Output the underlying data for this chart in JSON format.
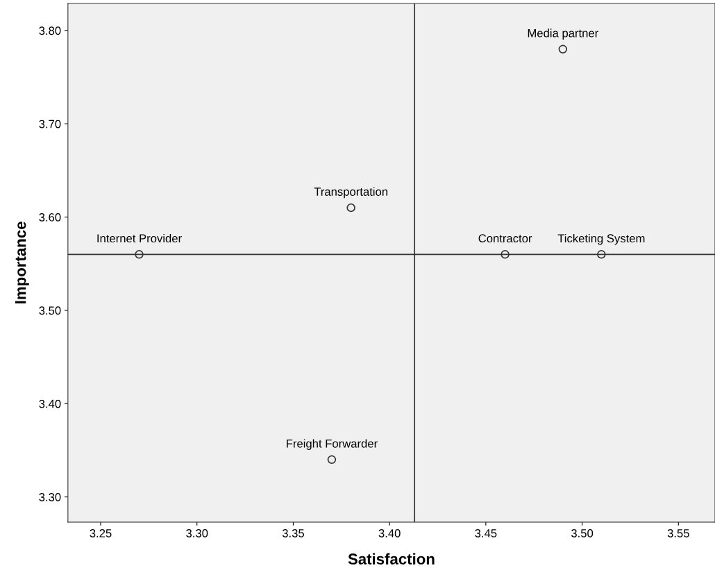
{
  "chart_data": {
    "type": "scatter",
    "xlabel": "Satisfaction",
    "ylabel": "Importance",
    "series": [
      {
        "color": "#333333",
        "x": [
          3.27,
          3.38,
          3.37,
          3.46,
          3.51,
          3.49
        ],
        "values": [
          3.56,
          3.61,
          3.34,
          3.56,
          3.56,
          3.78
        ]
      }
    ],
    "marker": "circle",
    "annotations": [
      {
        "text": "Internet Provider",
        "x": 3.27,
        "y": 3.56
      },
      {
        "text": "Transportation",
        "x": 3.38,
        "y": 3.61
      },
      {
        "text": "Freight Forwarder",
        "x": 3.37,
        "y": 3.34
      },
      {
        "text": "Contractor",
        "x": 3.46,
        "y": 3.56
      },
      {
        "text": "Ticketing System",
        "x": 3.51,
        "y": 3.56
      },
      {
        "text": "Media partner",
        "x": 3.49,
        "y": 3.78
      }
    ],
    "ref_lines": [
      {
        "axis": "x",
        "value": 3.413,
        "color": "#333333"
      },
      {
        "axis": "y",
        "value": 3.56,
        "color": "#333333"
      }
    ],
    "xlim": [
      3.233,
      3.569
    ],
    "ylim": [
      3.273,
      3.829
    ],
    "xticks": [
      {
        "value": 3.25,
        "label": "3.25"
      },
      {
        "value": 3.3,
        "label": "3.30"
      },
      {
        "value": 3.35,
        "label": "3.35"
      },
      {
        "value": 3.4,
        "label": "3.40"
      },
      {
        "value": 3.45,
        "label": "3.45"
      },
      {
        "value": 3.5,
        "label": "3.50"
      },
      {
        "value": 3.55,
        "label": "3.55"
      }
    ],
    "yticks": [
      {
        "value": 3.3,
        "label": "3.30"
      },
      {
        "value": 3.4,
        "label": "3.40"
      },
      {
        "value": 3.5,
        "label": "3.50"
      },
      {
        "value": 3.6,
        "label": "3.60"
      },
      {
        "value": 3.7,
        "label": "3.70"
      },
      {
        "value": 3.8,
        "label": "3.80"
      }
    ],
    "grid": false,
    "legend": false
  }
}
